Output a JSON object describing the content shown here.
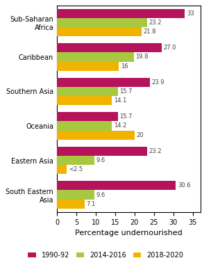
{
  "chart_data": {
    "type": "bar",
    "orientation": "horizontal",
    "categories": [
      "South Eastern\nAsia",
      "Eastern Asia",
      "Oceania",
      "Southern Asia",
      "Caribbean",
      "Sub-Saharan\nAfrica"
    ],
    "series": [
      {
        "name": "1990-92",
        "color": "#b5135b",
        "values": [
          30.6,
          23.2,
          15.7,
          23.9,
          27.0,
          33
        ]
      },
      {
        "name": "2014-2016",
        "color": "#a8c840",
        "values": [
          9.6,
          9.6,
          14.2,
          15.7,
          19.8,
          23.2
        ]
      },
      {
        "name": "2018-2020",
        "color": "#f0b400",
        "values": [
          7.1,
          2.5,
          20,
          14.1,
          16,
          21.8
        ],
        "value_labels": [
          "7.1",
          "<2.5",
          "20",
          "14.1",
          "16",
          "21.8"
        ]
      }
    ],
    "xlabel": "Percentage undernourished",
    "xlim": [
      0,
      37
    ],
    "xticks": [
      0,
      5,
      10,
      15,
      20,
      25,
      30,
      35
    ],
    "data_labels": true,
    "legend": "lower center"
  }
}
